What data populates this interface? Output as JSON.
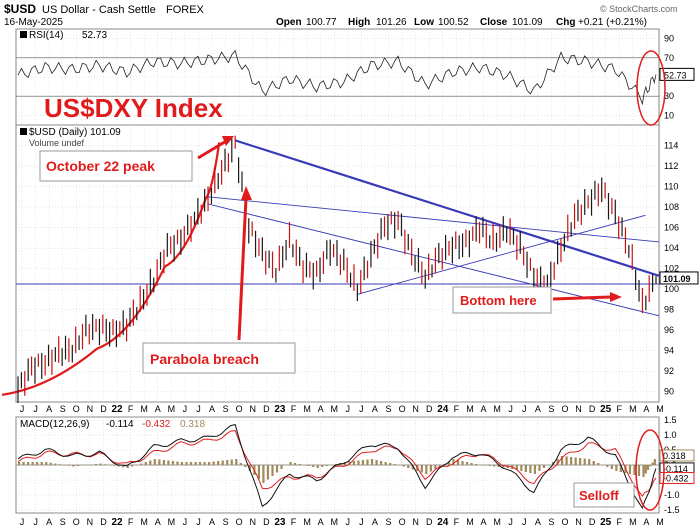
{
  "header": {
    "symbol": "$USD",
    "name": "US Dollar - Cash Settle",
    "exchange": "FOREX",
    "date": "16-May-2025",
    "open_label": "Open",
    "open": "100.77",
    "high_label": "High",
    "high": "101.26",
    "low_label": "Low",
    "low": "100.52",
    "close_label": "Close",
    "close": "101.09",
    "chg_label": "Chg",
    "chg": "+0.21 (+0.21%)",
    "watermark": "© StockCharts.com"
  },
  "annotations": {
    "big_title": "US$DXY Index",
    "peak": "October 22 peak",
    "parabola": "Parabola breach",
    "bottom": "Bottom here",
    "selloff": "Selloff"
  },
  "colors": {
    "price_bar": "#1a1a1a",
    "down_bar": "#cc1010",
    "annotation_red": "#e01b1b",
    "trendline": "#3a3ab8",
    "grid": "#cfcfcf",
    "rsi_line": "#222222",
    "macd_line": "#111111",
    "signal_line": "#e02020",
    "histogram": "#a08a5a"
  },
  "chart_data": [
    {
      "type": "line",
      "panel": "RSI",
      "legend": "RSI(14)",
      "last_value": "52.73",
      "ylim": [
        0,
        100
      ],
      "ticks": [
        "90",
        "70",
        "50",
        "30",
        "10"
      ],
      "levels": [
        70,
        30
      ],
      "x": [
        "2021-06",
        "2021-08",
        "2021-10",
        "2021-12",
        "2022-02",
        "2022-04",
        "2022-06",
        "2022-08",
        "2022-10",
        "2022-12",
        "2023-02",
        "2023-04",
        "2023-06",
        "2023-08",
        "2023-10",
        "2023-12",
        "2024-02",
        "2024-04",
        "2024-06",
        "2024-08",
        "2024-10",
        "2024-12",
        "2025-02",
        "2025-04",
        "2025-05"
      ],
      "y": [
        52,
        60,
        58,
        62,
        55,
        66,
        64,
        68,
        72,
        35,
        48,
        40,
        45,
        62,
        66,
        42,
        55,
        60,
        52,
        35,
        70,
        66,
        58,
        28,
        52.73
      ]
    },
    {
      "type": "line",
      "panel": "Price",
      "legend": "$USD (Daily) 101.09",
      "sublegend": "Volume undef",
      "last_value": "101.09",
      "ylim": [
        89,
        116
      ],
      "ticks": [
        "114",
        "112",
        "110",
        "108",
        "106",
        "104",
        "102",
        "100",
        "98",
        "96",
        "94",
        "92",
        "90"
      ],
      "x": [
        "2021-06",
        "2021-07",
        "2021-08",
        "2021-09",
        "2021-10",
        "2021-11",
        "2021-12",
        "2022-01",
        "2022-02",
        "2022-03",
        "2022-04",
        "2022-05",
        "2022-06",
        "2022-07",
        "2022-08",
        "2022-09",
        "2022-10",
        "2022-11",
        "2022-12",
        "2023-01",
        "2023-02",
        "2023-03",
        "2023-04",
        "2023-05",
        "2023-06",
        "2023-07",
        "2023-08",
        "2023-09",
        "2023-10",
        "2023-11",
        "2023-12",
        "2024-01",
        "2024-02",
        "2024-03",
        "2024-04",
        "2024-05",
        "2024-06",
        "2024-07",
        "2024-08",
        "2024-09",
        "2024-10",
        "2024-11",
        "2024-12",
        "2025-01",
        "2025-02",
        "2025-03",
        "2025-04",
        "2025-05"
      ],
      "y": [
        90.2,
        92.4,
        92.8,
        93.8,
        94.1,
        96.0,
        96.3,
        95.8,
        96.5,
        98.6,
        100.8,
        104.0,
        104.8,
        106.8,
        108.8,
        111.5,
        114.1,
        106.0,
        103.5,
        101.8,
        104.8,
        102.2,
        101.5,
        104.0,
        102.5,
        100.0,
        103.2,
        106.2,
        106.7,
        103.5,
        101.2,
        103.2,
        104.2,
        104.5,
        106.0,
        104.6,
        105.8,
        104.1,
        101.2,
        100.4,
        104.0,
        107.0,
        108.5,
        109.8,
        107.3,
        104.0,
        98.5,
        101.09
      ],
      "trendlines": [
        {
          "from": [
            "2022-10",
            114.5
          ],
          "to": [
            "2025-05",
            101.3
          ],
          "width": "thick"
        },
        {
          "from": [
            "2022-08",
            109.0
          ],
          "to": [
            "2025-05",
            104.6
          ]
        },
        {
          "from": [
            "2022-08",
            108.3
          ],
          "to": [
            "2025-05",
            97.4
          ]
        },
        {
          "from": [
            "2023-07",
            99.5
          ],
          "to": [
            "2025-04",
            107.2
          ]
        }
      ],
      "hline": 100.5,
      "parabola": [
        [
          "2021-06",
          89.7
        ],
        [
          "2022-01",
          94.2
        ],
        [
          "2022-06",
          102.2
        ],
        [
          "2022-09",
          108.8
        ],
        [
          "2022-10",
          114.3
        ]
      ]
    },
    {
      "type": "line",
      "panel": "MACD",
      "legend": "MACD(12,26,9)",
      "values_text": [
        "-0.114",
        "-0.432",
        "0.318"
      ],
      "ylim": [
        -1.6,
        1.6
      ],
      "ticks": [
        "1.5",
        "1.0",
        "0.5",
        "0.0",
        "-0.5",
        "-1.0",
        "-1.5"
      ],
      "badges": [
        "0.318",
        "-0.114",
        "-0.432"
      ],
      "x": [
        "2021-06",
        "2021-08",
        "2021-10",
        "2021-12",
        "2022-02",
        "2022-04",
        "2022-06",
        "2022-08",
        "2022-10",
        "2022-12",
        "2023-02",
        "2023-04",
        "2023-06",
        "2023-08",
        "2023-10",
        "2023-12",
        "2024-02",
        "2024-04",
        "2024-06",
        "2024-08",
        "2024-10",
        "2024-12",
        "2025-02",
        "2025-04",
        "2025-05"
      ],
      "macd": [
        0.2,
        0.5,
        0.3,
        0.4,
        -0.1,
        0.6,
        0.8,
        0.9,
        1.3,
        -1.4,
        -0.3,
        -0.5,
        0.1,
        0.7,
        0.6,
        -0.7,
        0.3,
        0.4,
        -0.1,
        -0.9,
        0.5,
        0.9,
        0.3,
        -1.5,
        -0.114
      ],
      "signal": [
        0.1,
        0.4,
        0.35,
        0.35,
        0.0,
        0.4,
        0.7,
        0.8,
        1.1,
        -0.8,
        -0.4,
        -0.4,
        0.0,
        0.5,
        0.6,
        -0.4,
        0.1,
        0.4,
        0.0,
        -0.6,
        0.2,
        0.7,
        0.5,
        -1.1,
        -0.432
      ],
      "histogram": [
        0.1,
        0.1,
        -0.05,
        0.05,
        -0.1,
        0.2,
        0.1,
        0.1,
        0.2,
        -0.6,
        0.1,
        -0.1,
        0.1,
        0.2,
        0.0,
        -0.3,
        0.2,
        0.0,
        -0.1,
        -0.3,
        0.3,
        0.2,
        -0.2,
        -0.4,
        0.318
      ]
    }
  ],
  "x_axis": {
    "labels": [
      "J",
      "J",
      "A",
      "S",
      "O",
      "N",
      "D",
      "22",
      "F",
      "M",
      "A",
      "M",
      "J",
      "J",
      "A",
      "S",
      "O",
      "N",
      "D",
      "23",
      "F",
      "M",
      "A",
      "M",
      "J",
      "J",
      "A",
      "S",
      "O",
      "N",
      "D",
      "24",
      "F",
      "M",
      "A",
      "M",
      "J",
      "J",
      "A",
      "S",
      "O",
      "N",
      "D",
      "25",
      "F",
      "M",
      "A",
      "M"
    ],
    "bold": [
      "22",
      "23",
      "24",
      "25"
    ]
  }
}
